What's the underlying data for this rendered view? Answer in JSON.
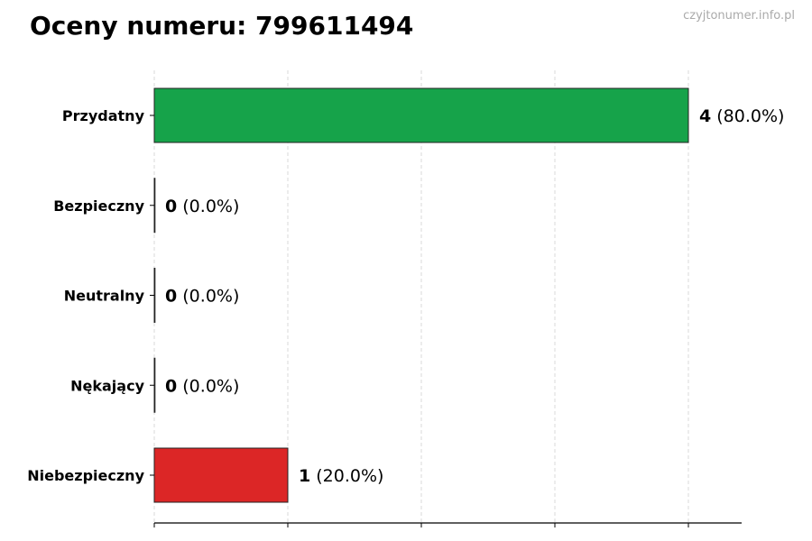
{
  "title": "Oceny numeru: 799611494",
  "watermark": "czyjtonumer.info.pl",
  "chart_data": {
    "type": "bar",
    "orientation": "horizontal",
    "title": "Oceny numeru: 799611494",
    "categories": [
      "Przydatny",
      "Bezpieczny",
      "Neutralny",
      "Nękający",
      "Niebezpieczny"
    ],
    "values": [
      4,
      0,
      0,
      0,
      1
    ],
    "data_labels": [
      "(80.0%)",
      "(0.0%)",
      "(0.0%)",
      "(0.0%)",
      "(20.0%)"
    ],
    "colors": [
      "#16a34a",
      "#16a34a",
      "#16a34a",
      "#dc2626",
      "#dc2626"
    ],
    "xlim": [
      0,
      4.4
    ],
    "xticks": [
      0,
      1,
      2,
      3,
      4
    ],
    "xtick_labels_shown": false,
    "grid": "vertical dashed",
    "xlabel": "",
    "ylabel": ""
  }
}
